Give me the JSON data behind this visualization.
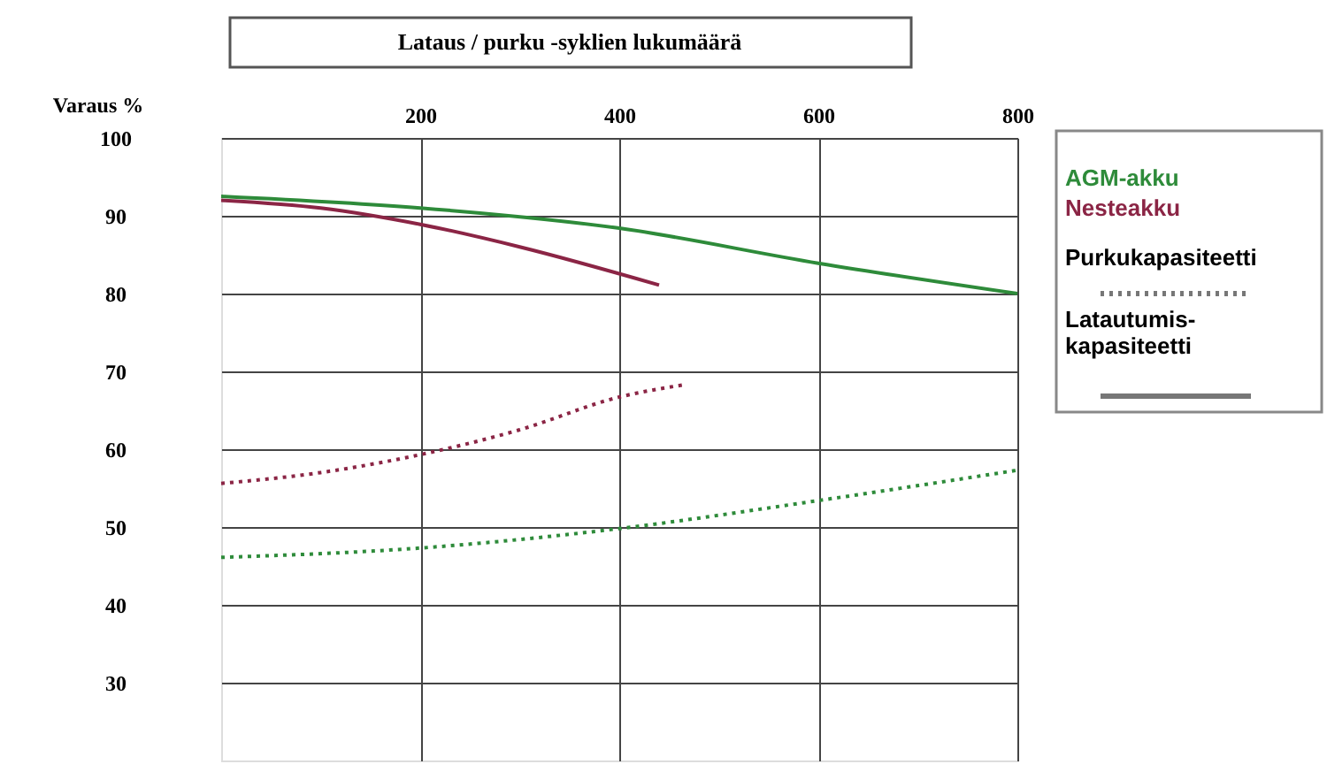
{
  "chart_data": {
    "type": "line",
    "title": "Lataus / purku -syklien lukumäärä",
    "ylabel": "Varaus %",
    "xlim": [
      0,
      800
    ],
    "xticks": [
      200,
      400,
      600,
      800
    ],
    "ylim": [
      20,
      100
    ],
    "yticks": [
      30,
      40,
      50,
      60,
      70,
      80,
      90,
      100
    ],
    "grid": true,
    "series": [
      {
        "color": "#2e8b3a",
        "line_style": "solid",
        "x": [
          0,
          200,
          400,
          600,
          800
        ],
        "values": [
          92.5,
          91,
          88.4,
          83.9,
          80
        ]
      },
      {
        "color": "#8b2545",
        "line_style": "solid",
        "x": [
          0,
          100,
          200,
          300,
          440
        ],
        "values": [
          92,
          91,
          88.9,
          86,
          81.1
        ]
      },
      {
        "color": "#8b2545",
        "line_style": "dotted",
        "x": [
          0,
          100,
          200,
          300,
          400,
          466
        ],
        "values": [
          55.6,
          57,
          59.3,
          62.5,
          66.7,
          68.3
        ]
      },
      {
        "color": "#2e8b3a",
        "line_style": "dotted",
        "x": [
          0,
          200,
          400,
          600,
          800
        ],
        "values": [
          46.1,
          47.3,
          49.8,
          53.4,
          57.3
        ]
      }
    ],
    "annotations": [
      "AGM-akku",
      "Nesteakku",
      "Purkukapasiteetti",
      "Latautumis-\nkapasiteetti"
    ]
  }
}
